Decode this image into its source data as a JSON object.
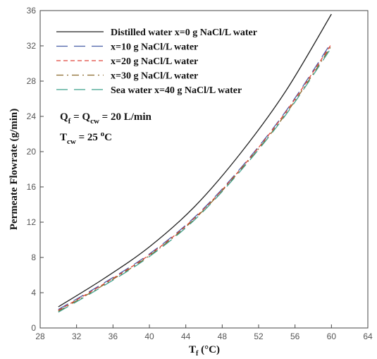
{
  "chart_data": {
    "type": "line",
    "xlabel": {
      "main": "T",
      "sub": "f",
      "unit": " (°C)"
    },
    "ylabel": "Permeate Flowrate (g/min)",
    "xlim": [
      28,
      64
    ],
    "ylim": [
      0,
      36
    ],
    "x_ticks": [
      "28",
      "32",
      "36",
      "40",
      "44",
      "48",
      "52",
      "56",
      "60",
      "64"
    ],
    "y_ticks": [
      "0",
      "4",
      "8",
      "12",
      "16",
      "20",
      "24",
      "28",
      "32",
      "36"
    ],
    "grid": false,
    "legend_position": "top-left",
    "series": [
      {
        "name": "Distilled water x=0 g NaCl/L water",
        "color": "#222222",
        "dash": "solid",
        "x": [
          30,
          35,
          40,
          45,
          50,
          55,
          60
        ],
        "y": [
          2.4,
          5.6,
          9.2,
          13.8,
          19.8,
          26.9,
          35.6
        ]
      },
      {
        "name": "x=10 g NaCl/L water",
        "color": "#4a5fa8",
        "dash": "long-dash",
        "x": [
          30,
          35,
          40,
          45,
          50,
          55,
          60
        ],
        "y": [
          2.1,
          5.1,
          8.4,
          12.6,
          18.1,
          24.6,
          32.4
        ]
      },
      {
        "name": "x=20 g NaCl/L water",
        "color": "#e0433a",
        "dash": "short-dash",
        "x": [
          30,
          35,
          40,
          45,
          50,
          55,
          60
        ],
        "y": [
          2.0,
          5.0,
          8.3,
          12.5,
          18.0,
          24.5,
          32.2
        ]
      },
      {
        "name": "x=30 g NaCl/L water",
        "color": "#8a6a2c",
        "dash": "dash-dot",
        "x": [
          30,
          35,
          40,
          45,
          50,
          55,
          60
        ],
        "y": [
          1.9,
          4.9,
          8.2,
          12.4,
          17.9,
          24.3,
          32.0
        ]
      },
      {
        "name": "Sea water x=40 g NaCl/L water",
        "color": "#3fa08c",
        "dash": "long-dash",
        "x": [
          30,
          35,
          40,
          45,
          50,
          55,
          60
        ],
        "y": [
          1.8,
          4.8,
          8.1,
          12.3,
          17.8,
          24.2,
          31.8
        ]
      }
    ],
    "annotations": {
      "flow": {
        "q1": "Q",
        "q1_sub": "f",
        "mid": " = Q",
        "q2_sub": "cw",
        "rest": " = 20 L/min"
      },
      "temp": {
        "t": "T",
        "t_sub": "cw",
        "mid": " = 25 ",
        "sup": "o",
        "unit": "C"
      }
    }
  }
}
